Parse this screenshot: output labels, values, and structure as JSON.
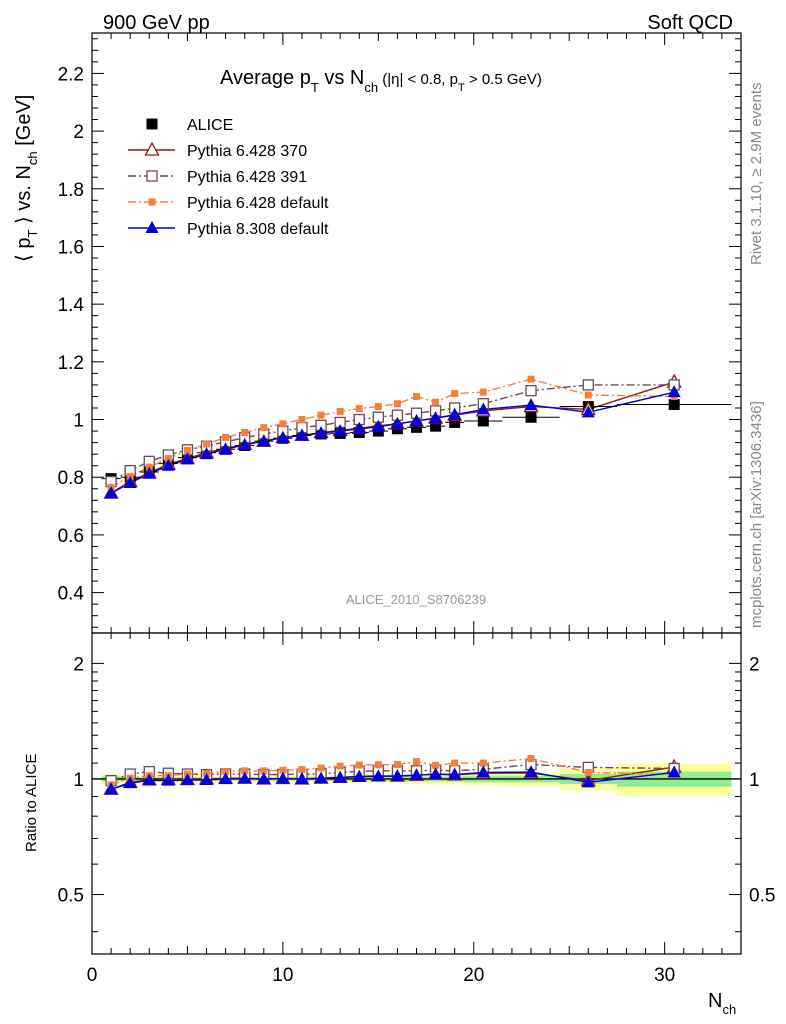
{
  "header": {
    "left": "900 GeV pp",
    "right": "Soft QCD"
  },
  "side_labels": {
    "rivet": "Rivet 3.1.10, ≥ 2.9M events",
    "mcplots": "mcplots.cern.ch [arXiv:1306.3436]"
  },
  "chart_data": [
    {
      "type": "scatter",
      "title": "Average pT vs Nch (|η| < 0.8, pT > 0.5 GeV)",
      "title_parts": {
        "a": "Average p",
        "a_sub": "T",
        "b": " vs N",
        "b_sub": "ch",
        "c": " (|η| < 0.8, p",
        "c_sub": "T",
        "d": " > 0.5 GeV)"
      },
      "ylabel": "⟨ pT ⟩ vs. Nch [GeV]",
      "ylabel_parts": {
        "a": "⟨ p",
        "a_sub": "T",
        "b": " ⟩ vs. N",
        "b_sub": "ch",
        "c": " [GeV]"
      },
      "xlabel": "Nch",
      "xlabel_parts": {
        "a": "N",
        "a_sub": "ch"
      },
      "watermark": "ALICE_2010_S8706239",
      "xlim": [
        0,
        34
      ],
      "ylim": [
        0.26,
        2.34
      ],
      "yticks": [
        0.4,
        0.6,
        0.8,
        1,
        1.2,
        1.4,
        1.6,
        1.8,
        2,
        2.2
      ],
      "ytick_labels": [
        "0.4",
        "0.6",
        "0.8",
        "1",
        "1.2",
        "1.4",
        "1.6",
        "1.8",
        "2",
        "2.2"
      ],
      "xticks": [
        0,
        10,
        20,
        30
      ],
      "xtick_labels": [
        "0",
        "10",
        "20",
        "30"
      ],
      "legend_position": "top-left",
      "series": [
        {
          "name": "ALICE",
          "color": "#000000",
          "marker": "square-filled",
          "line": "none",
          "x": [
            1,
            2,
            3,
            4,
            5,
            6,
            7,
            8,
            9,
            10,
            11,
            12,
            13,
            14,
            15,
            16,
            17,
            18,
            19,
            20.5,
            23,
            26,
            30.5
          ],
          "y": [
            0.795,
            0.8,
            0.818,
            0.848,
            0.868,
            0.885,
            0.897,
            0.91,
            0.925,
            0.935,
            0.945,
            0.95,
            0.952,
            0.955,
            0.96,
            0.968,
            0.973,
            0.977,
            0.99,
            0.995,
            1.008,
            1.045,
            1.052
          ],
          "xerr": [
            0.5,
            0.5,
            0.5,
            0.5,
            0.5,
            0.5,
            0.5,
            0.5,
            0.5,
            0.5,
            0.5,
            0.5,
            0.5,
            0.5,
            0.5,
            0.5,
            0.5,
            0.5,
            0.5,
            1,
            1.5,
            1.5,
            3
          ]
        },
        {
          "name": "Pythia 6.428 370",
          "color": "#8b1a1a",
          "marker": "triangle-open",
          "line": "solid",
          "x": [
            1,
            2,
            3,
            4,
            5,
            6,
            7,
            8,
            9,
            10,
            11,
            12,
            13,
            14,
            15,
            16,
            17,
            18,
            19,
            20.5,
            23,
            26,
            30.5
          ],
          "y": [
            0.745,
            0.785,
            0.815,
            0.845,
            0.865,
            0.885,
            0.9,
            0.915,
            0.925,
            0.938,
            0.945,
            0.955,
            0.962,
            0.97,
            0.978,
            0.985,
            0.995,
            1.005,
            1.015,
            1.03,
            1.045,
            1.035,
            1.13
          ]
        },
        {
          "name": "Pythia 6.428 391",
          "color": "#6b4a5a",
          "marker": "square-open",
          "line": "dashdot",
          "x": [
            1,
            2,
            3,
            4,
            5,
            6,
            7,
            8,
            9,
            10,
            11,
            12,
            13,
            14,
            15,
            16,
            17,
            18,
            19,
            20.5,
            23,
            26,
            30.5
          ],
          "y": [
            0.785,
            0.823,
            0.855,
            0.877,
            0.895,
            0.908,
            0.923,
            0.937,
            0.95,
            0.96,
            0.972,
            0.98,
            0.99,
            1.0,
            1.008,
            1.015,
            1.022,
            1.03,
            1.04,
            1.055,
            1.1,
            1.12,
            1.12
          ]
        },
        {
          "name": "Pythia 6.428 default",
          "color": "#f5803e",
          "marker": "square-small",
          "line": "dashdot",
          "x": [
            1,
            2,
            3,
            4,
            5,
            6,
            7,
            8,
            9,
            10,
            11,
            12,
            13,
            14,
            15,
            16,
            17,
            18,
            19,
            20.5,
            23,
            26,
            30.5
          ],
          "y": [
            0.765,
            0.803,
            0.835,
            0.865,
            0.893,
            0.915,
            0.938,
            0.955,
            0.972,
            0.985,
            1.0,
            1.015,
            1.028,
            1.038,
            1.045,
            1.055,
            1.08,
            1.06,
            1.09,
            1.095,
            1.14,
            1.085,
            1.08
          ]
        },
        {
          "name": "Pythia 8.308 default",
          "color": "#0000dd",
          "marker": "triangle-filled",
          "line": "solid",
          "x": [
            1,
            2,
            3,
            4,
            5,
            6,
            7,
            8,
            9,
            10,
            11,
            12,
            13,
            14,
            15,
            16,
            17,
            18,
            19,
            20.5,
            23,
            26,
            30.5
          ],
          "y": [
            0.745,
            0.78,
            0.812,
            0.84,
            0.862,
            0.88,
            0.897,
            0.912,
            0.925,
            0.937,
            0.945,
            0.953,
            0.96,
            0.968,
            0.975,
            0.985,
            0.995,
            1.005,
            1.017,
            1.035,
            1.05,
            1.025,
            1.095
          ]
        }
      ]
    },
    {
      "type": "scatter",
      "ylabel": "Ratio to ALICE",
      "xlim": [
        0,
        34
      ],
      "ylim": [
        0.35,
        2.4
      ],
      "yscale": "log",
      "yticks": [
        0.5,
        1,
        2
      ],
      "ytick_labels": [
        "0.5",
        "1",
        "2"
      ],
      "xticks": [
        0,
        10,
        20,
        30
      ],
      "xtick_labels": [
        "0",
        "10",
        "20",
        "30"
      ],
      "reference_line": 1,
      "bands": {
        "inner_color": "#90ee90",
        "outer_color": "#ffff99",
        "x": [
          1,
          2,
          3,
          4,
          5,
          6,
          7,
          8,
          9,
          10,
          11,
          12,
          13,
          14,
          15,
          16,
          17,
          18,
          19,
          20.5,
          23,
          26,
          30.5
        ],
        "xerr": [
          0.5,
          0.5,
          0.5,
          0.5,
          0.5,
          0.5,
          0.5,
          0.5,
          0.5,
          0.5,
          0.5,
          0.5,
          0.5,
          0.5,
          0.5,
          0.5,
          0.5,
          0.5,
          0.5,
          1,
          1.5,
          1.5,
          3
        ],
        "inner": [
          0.015,
          0.012,
          0.01,
          0.01,
          0.01,
          0.01,
          0.01,
          0.01,
          0.01,
          0.01,
          0.01,
          0.01,
          0.012,
          0.012,
          0.012,
          0.015,
          0.015,
          0.015,
          0.015,
          0.02,
          0.02,
          0.03,
          0.045
        ],
        "outer": [
          0.03,
          0.025,
          0.02,
          0.02,
          0.02,
          0.02,
          0.02,
          0.02,
          0.02,
          0.02,
          0.02,
          0.02,
          0.022,
          0.025,
          0.025,
          0.028,
          0.03,
          0.03,
          0.032,
          0.035,
          0.04,
          0.065,
          0.095
        ]
      },
      "series": [
        {
          "name": "Pythia 6.428 370",
          "color": "#8b1a1a",
          "y": [
            0.94,
            0.98,
            0.995,
            0.997,
            0.997,
            1.0,
            1.003,
            1.005,
            1.0,
            1.003,
            1.0,
            1.005,
            1.01,
            1.016,
            1.019,
            1.017,
            1.023,
            1.029,
            1.025,
            1.035,
            1.037,
            0.99,
            1.074
          ]
        },
        {
          "name": "Pythia 6.428 391",
          "color": "#6b4a5a",
          "y": [
            0.99,
            1.03,
            1.045,
            1.035,
            1.03,
            1.026,
            1.03,
            1.03,
            1.027,
            1.027,
            1.029,
            1.032,
            1.04,
            1.047,
            1.05,
            1.049,
            1.05,
            1.054,
            1.05,
            1.06,
            1.09,
            1.072,
            1.065
          ]
        },
        {
          "name": "Pythia 6.428 default",
          "color": "#f5803e",
          "y": [
            0.965,
            1.005,
            1.02,
            1.02,
            1.03,
            1.034,
            1.046,
            1.05,
            1.05,
            1.054,
            1.058,
            1.068,
            1.08,
            1.087,
            1.089,
            1.09,
            1.11,
            1.085,
            1.1,
            1.1,
            1.13,
            1.04,
            1.026
          ]
        },
        {
          "name": "Pythia 8.308 default",
          "color": "#0000dd",
          "y": [
            0.94,
            0.975,
            0.992,
            0.99,
            0.993,
            0.994,
            1.0,
            1.002,
            1.0,
            1.002,
            1.0,
            1.003,
            1.008,
            1.014,
            1.016,
            1.018,
            1.023,
            1.029,
            1.027,
            1.04,
            1.042,
            0.98,
            1.04
          ]
        }
      ]
    }
  ]
}
